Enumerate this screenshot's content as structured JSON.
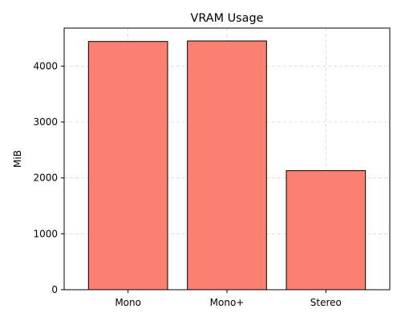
{
  "chart_data": {
    "type": "bar",
    "title": "VRAM Usage",
    "xlabel": "",
    "ylabel": "MiB",
    "categories": [
      "Mono",
      "Mono+",
      "Stereo"
    ],
    "values": [
      4440,
      4450,
      2130
    ],
    "ylim": [
      0,
      4680
    ],
    "yticks": [
      0,
      1000,
      2000,
      3000,
      4000
    ],
    "grid": true,
    "bar_color": "#FA8072",
    "bar_edge_color": "#000000"
  }
}
